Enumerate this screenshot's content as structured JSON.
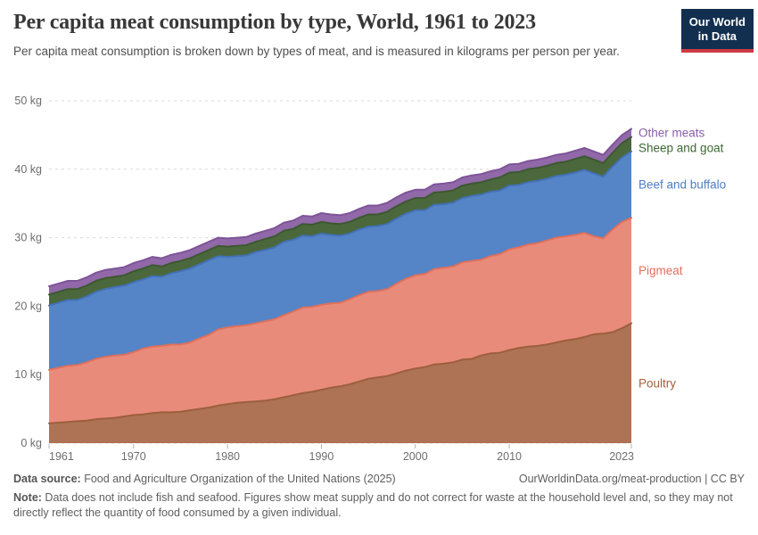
{
  "header": {
    "title": "Per capita meat consumption by type, World, 1961 to 2023",
    "subtitle": "Per capita meat consumption is broken down by types of meat, and is measured in kilograms per person per year.",
    "logo": {
      "line1": "Our World",
      "line2": "in Data",
      "bg_color": "#132f4f",
      "accent_color": "#cc3b44"
    }
  },
  "chart_data": {
    "type": "area",
    "stacked": true,
    "title": "Per capita meat consumption by type, World, 1961 to 2023",
    "ylabel": "",
    "xlabel": "",
    "ylim": [
      0,
      50
    ],
    "y_ticks": [
      0,
      10,
      20,
      30,
      40,
      50
    ],
    "y_tick_suffix": " kg",
    "x_ticks": [
      1961,
      1970,
      1980,
      1990,
      2000,
      2010,
      2023
    ],
    "grid": true,
    "grid_color": "#d9d9d9",
    "axis_text_color": "#6e6e6e",
    "legend_position": "right-inline",
    "x": [
      1961,
      1962,
      1963,
      1964,
      1965,
      1966,
      1967,
      1968,
      1969,
      1970,
      1971,
      1972,
      1973,
      1974,
      1975,
      1976,
      1977,
      1978,
      1979,
      1980,
      1981,
      1982,
      1983,
      1984,
      1985,
      1986,
      1987,
      1988,
      1989,
      1990,
      1991,
      1992,
      1993,
      1994,
      1995,
      1996,
      1997,
      1998,
      1999,
      2000,
      2001,
      2002,
      2003,
      2004,
      2005,
      2006,
      2007,
      2008,
      2009,
      2010,
      2011,
      2012,
      2013,
      2014,
      2015,
      2016,
      2017,
      2018,
      2019,
      2020,
      2021,
      2022,
      2023
    ],
    "series": [
      {
        "name": "Poultry",
        "fill": "#ae7254",
        "line": "#9c5f3d",
        "label_color": "#a4613c",
        "values": [
          2.9,
          3.0,
          3.1,
          3.2,
          3.3,
          3.5,
          3.6,
          3.7,
          3.9,
          4.1,
          4.2,
          4.4,
          4.5,
          4.5,
          4.6,
          4.8,
          5.0,
          5.2,
          5.5,
          5.7,
          5.9,
          6.0,
          6.1,
          6.2,
          6.4,
          6.7,
          7.0,
          7.3,
          7.5,
          7.8,
          8.1,
          8.3,
          8.6,
          9.0,
          9.4,
          9.6,
          9.8,
          10.2,
          10.6,
          10.9,
          11.1,
          11.5,
          11.6,
          11.8,
          12.2,
          12.3,
          12.8,
          13.1,
          13.2,
          13.6,
          13.9,
          14.1,
          14.2,
          14.4,
          14.7,
          15.0,
          15.2,
          15.5,
          15.9,
          16.0,
          16.2,
          16.8,
          17.5
        ]
      },
      {
        "name": "Pigmeat",
        "fill": "#e98b7b",
        "line": "#e1705a",
        "label_color": "#e0705c",
        "values": [
          7.8,
          8.0,
          8.2,
          8.2,
          8.5,
          8.8,
          9.0,
          9.1,
          9.0,
          9.2,
          9.6,
          9.7,
          9.7,
          9.9,
          9.8,
          9.9,
          10.3,
          10.6,
          11.1,
          11.2,
          11.2,
          11.2,
          11.4,
          11.6,
          11.7,
          12.0,
          12.2,
          12.5,
          12.4,
          12.4,
          12.3,
          12.2,
          12.4,
          12.6,
          12.7,
          12.6,
          12.7,
          13.1,
          13.4,
          13.6,
          13.6,
          13.9,
          14.0,
          14.0,
          14.2,
          14.3,
          14.0,
          14.2,
          14.4,
          14.7,
          14.7,
          14.9,
          15.0,
          15.2,
          15.3,
          15.2,
          15.2,
          15.2,
          14.3,
          13.9,
          15.0,
          15.5,
          15.4
        ]
      },
      {
        "name": "Beef and buffalo",
        "fill": "#5584c7",
        "line": "#4371b8",
        "label_color": "#4f7dc3",
        "values": [
          9.4,
          9.5,
          9.6,
          9.5,
          9.6,
          9.8,
          9.9,
          10.0,
          10.1,
          10.2,
          10.1,
          10.3,
          10.1,
          10.4,
          10.7,
          10.8,
          10.8,
          10.9,
          10.7,
          10.3,
          10.2,
          10.2,
          10.4,
          10.4,
          10.5,
          10.7,
          10.5,
          10.5,
          10.3,
          10.4,
          10.0,
          9.8,
          9.6,
          9.6,
          9.5,
          9.5,
          9.5,
          9.5,
          9.5,
          9.5,
          9.3,
          9.4,
          9.3,
          9.3,
          9.4,
          9.5,
          9.5,
          9.4,
          9.3,
          9.3,
          9.1,
          9.1,
          9.1,
          9.0,
          9.0,
          9.0,
          9.1,
          9.2,
          9.2,
          9.0,
          9.2,
          9.4,
          9.7
        ]
      },
      {
        "name": "Sheep and goat",
        "fill": "#4b683d",
        "line": "#3c5830",
        "label_color": "#3d6832",
        "values": [
          1.6,
          1.6,
          1.6,
          1.6,
          1.6,
          1.6,
          1.6,
          1.5,
          1.5,
          1.6,
          1.6,
          1.6,
          1.5,
          1.5,
          1.5,
          1.5,
          1.5,
          1.5,
          1.5,
          1.5,
          1.5,
          1.5,
          1.5,
          1.6,
          1.6,
          1.6,
          1.6,
          1.7,
          1.7,
          1.7,
          1.7,
          1.7,
          1.7,
          1.7,
          1.8,
          1.7,
          1.8,
          1.8,
          1.8,
          1.8,
          1.8,
          1.8,
          1.8,
          1.8,
          1.8,
          1.8,
          1.8,
          1.8,
          1.9,
          1.9,
          1.9,
          1.9,
          1.9,
          1.9,
          1.9,
          1.9,
          2.0,
          2.0,
          2.0,
          2.0,
          2.0,
          2.1,
          2.1
        ]
      },
      {
        "name": "Other meats",
        "fill": "#9168a8",
        "line": "#7e5498",
        "label_color": "#8a5fa8",
        "values": [
          1.2,
          1.2,
          1.2,
          1.2,
          1.2,
          1.2,
          1.2,
          1.2,
          1.2,
          1.2,
          1.2,
          1.2,
          1.2,
          1.2,
          1.2,
          1.2,
          1.2,
          1.2,
          1.2,
          1.2,
          1.2,
          1.2,
          1.2,
          1.2,
          1.2,
          1.2,
          1.2,
          1.2,
          1.2,
          1.3,
          1.3,
          1.3,
          1.3,
          1.3,
          1.3,
          1.3,
          1.3,
          1.3,
          1.3,
          1.2,
          1.2,
          1.2,
          1.2,
          1.2,
          1.2,
          1.2,
          1.2,
          1.2,
          1.2,
          1.2,
          1.2,
          1.2,
          1.2,
          1.2,
          1.2,
          1.2,
          1.2,
          1.2,
          1.2,
          1.2,
          1.2,
          1.2,
          1.2
        ]
      }
    ]
  },
  "footer": {
    "source_label": "Data source:",
    "source_text": " Food and Agriculture Organization of the United Nations (2025)",
    "link_text": "OurWorldinData.org/meat-production | CC BY",
    "note_label": "Note:",
    "note_text": " Data does not include fish and seafood. Figures show meat supply and do not correct for waste at the household level and, so they may not directly reflect the quantity of food consumed by a given individual."
  }
}
